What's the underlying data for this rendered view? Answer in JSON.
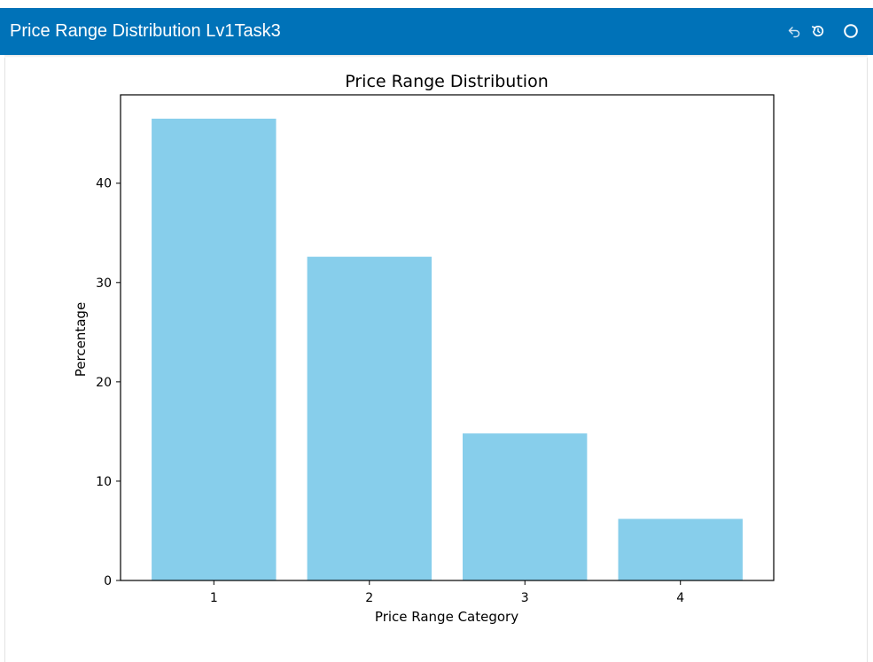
{
  "window": {
    "title": "Price Range Distribution Lv1Task3",
    "bar_color": "#0072b8",
    "controls": [
      "undo-icon",
      "reset-icon",
      "close-icon"
    ]
  },
  "chart_data": {
    "type": "bar",
    "title": "Price Range Distribution",
    "xlabel": "Price Range Category",
    "ylabel": "Percentage",
    "categories": [
      "1",
      "2",
      "3",
      "4"
    ],
    "values": [
      46.5,
      32.6,
      14.8,
      6.2
    ],
    "ylim": [
      0,
      48.9
    ],
    "yticks": [
      0,
      10,
      20,
      30,
      40
    ],
    "ytick_labels": [
      "0",
      "10",
      "20",
      "30",
      "40"
    ],
    "bar_color": "#87ceeb",
    "grid": false,
    "legend": false
  }
}
